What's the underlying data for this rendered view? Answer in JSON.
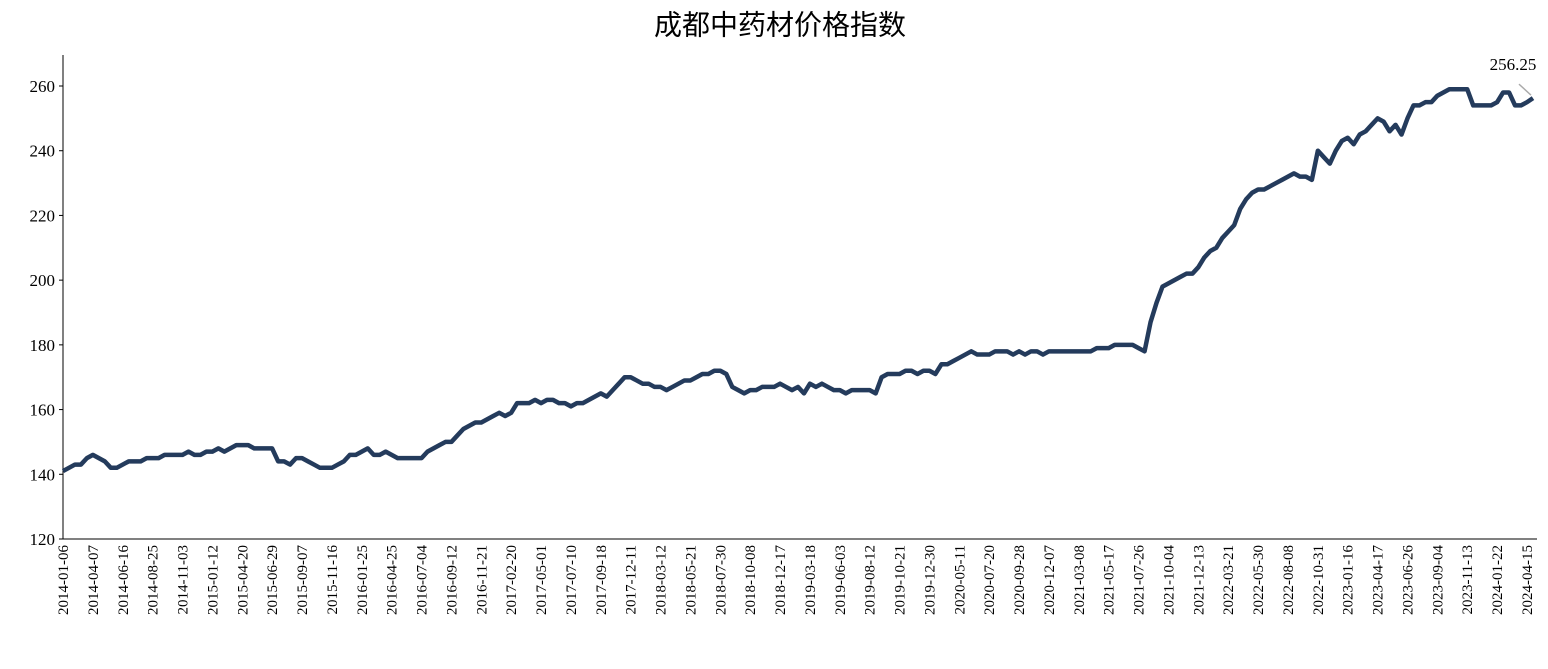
{
  "chart_data": {
    "type": "line",
    "title": "成都中药材价格指数",
    "categories": [
      "2014-01-06",
      null,
      null,
      null,
      null,
      "2014-04-07",
      null,
      null,
      null,
      null,
      "2014-06-16",
      null,
      null,
      null,
      null,
      "2014-08-25",
      null,
      null,
      null,
      null,
      "2014-11-03",
      null,
      null,
      null,
      null,
      "2015-01-12",
      null,
      null,
      null,
      null,
      "2015-04-20",
      null,
      null,
      null,
      null,
      "2015-06-29",
      null,
      null,
      null,
      null,
      "2015-09-07",
      null,
      null,
      null,
      null,
      "2015-11-16",
      null,
      null,
      null,
      null,
      "2016-01-25",
      null,
      null,
      null,
      null,
      "2016-04-25",
      null,
      null,
      null,
      null,
      "2016-07-04",
      null,
      null,
      null,
      null,
      "2016-09-12",
      null,
      null,
      null,
      null,
      "2016-11-21",
      null,
      null,
      null,
      null,
      "2017-02-20",
      null,
      null,
      null,
      null,
      "2017-05-01",
      null,
      null,
      null,
      null,
      "2017-07-10",
      null,
      null,
      null,
      null,
      "2017-09-18",
      null,
      null,
      null,
      null,
      "2017-12-11",
      null,
      null,
      null,
      null,
      "2018-03-12",
      null,
      null,
      null,
      null,
      "2018-05-21",
      null,
      null,
      null,
      null,
      "2018-07-30",
      null,
      null,
      null,
      null,
      "2018-10-08",
      null,
      null,
      null,
      null,
      "2018-12-17",
      null,
      null,
      null,
      null,
      "2019-03-18",
      null,
      null,
      null,
      null,
      "2019-06-03",
      null,
      null,
      null,
      null,
      "2019-08-12",
      null,
      null,
      null,
      null,
      "2019-10-21",
      null,
      null,
      null,
      null,
      "2019-12-30",
      null,
      null,
      null,
      null,
      "2020-05-11",
      null,
      null,
      null,
      null,
      "2020-07-20",
      null,
      null,
      null,
      null,
      "2020-09-28",
      null,
      null,
      null,
      null,
      "2020-12-07",
      null,
      null,
      null,
      null,
      "2021-03-08",
      null,
      null,
      null,
      null,
      "2021-05-17",
      null,
      null,
      null,
      null,
      "2021-07-26",
      null,
      null,
      null,
      null,
      "2021-10-04",
      null,
      null,
      null,
      null,
      "2021-12-13",
      null,
      null,
      null,
      null,
      "2022-03-21",
      null,
      null,
      null,
      null,
      "2022-05-30",
      null,
      null,
      null,
      null,
      "2022-08-08",
      null,
      null,
      null,
      null,
      "2022-10-31",
      null,
      null,
      null,
      null,
      "2023-01-16",
      null,
      null,
      null,
      null,
      "2023-04-17",
      null,
      null,
      null,
      null,
      "2023-06-26",
      null,
      null,
      null,
      null,
      "2023-09-04",
      null,
      null,
      null,
      null,
      "2023-11-13",
      null,
      null,
      null,
      null,
      "2024-01-22",
      null,
      null,
      null,
      null,
      "2024-04-15",
      null
    ],
    "values": [
      141,
      142,
      143,
      143,
      145,
      146,
      145,
      144,
      142,
      142,
      143,
      144,
      144,
      144,
      145,
      145,
      145,
      146,
      146,
      146,
      146,
      147,
      146,
      146,
      147,
      147,
      148,
      147,
      148,
      149,
      149,
      149,
      148,
      148,
      148,
      148,
      144,
      144,
      143,
      145,
      145,
      144,
      143,
      142,
      142,
      142,
      143,
      144,
      146,
      146,
      147,
      148,
      146,
      146,
      147,
      146,
      145,
      145,
      145,
      145,
      145,
      147,
      148,
      149,
      150,
      150,
      152,
      154,
      155,
      156,
      156,
      157,
      158,
      159,
      158,
      159,
      162,
      162,
      162,
      163,
      162,
      163,
      163,
      162,
      162,
      161,
      162,
      162,
      163,
      164,
      165,
      164,
      166,
      168,
      170,
      170,
      169,
      168,
      168,
      167,
      167,
      166,
      167,
      168,
      169,
      169,
      170,
      171,
      171,
      172,
      172,
      171,
      167,
      166,
      165,
      166,
      166,
      167,
      167,
      167,
      168,
      167,
      166,
      167,
      165,
      168,
      167,
      168,
      167,
      166,
      166,
      165,
      166,
      166,
      166,
      166,
      165,
      170,
      171,
      171,
      171,
      172,
      172,
      171,
      172,
      172,
      171,
      174,
      174,
      175,
      176,
      177,
      178,
      177,
      177,
      177,
      178,
      178,
      178,
      177,
      178,
      177,
      178,
      178,
      177,
      178,
      178,
      178,
      178,
      178,
      178,
      178,
      178,
      179,
      179,
      179,
      180,
      180,
      180,
      180,
      179,
      178,
      187,
      193,
      198,
      199,
      200,
      201,
      202,
      202,
      204,
      207,
      209,
      210,
      213,
      215,
      217,
      222,
      225,
      227,
      228,
      228,
      229,
      230,
      231,
      232,
      233,
      232,
      232,
      231,
      240,
      238,
      236,
      240,
      243,
      244,
      242,
      245,
      246,
      248,
      250,
      249,
      246,
      248,
      245,
      250,
      254,
      254,
      255,
      255,
      257,
      258,
      259,
      259,
      259,
      259,
      254,
      254,
      254,
      254,
      255,
      258,
      258,
      254,
      254,
      255,
      256.25
    ],
    "color": "#243b5c",
    "ylim": [
      120,
      260
    ],
    "yticks": [
      120,
      140,
      160,
      180,
      200,
      220,
      240,
      260
    ],
    "grid": false
  }
}
